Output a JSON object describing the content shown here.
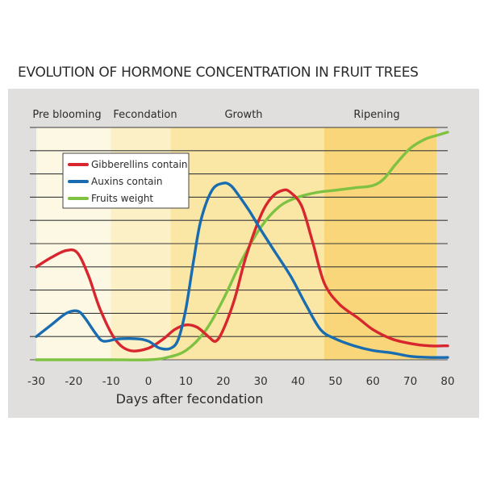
{
  "chart_data": {
    "type": "line",
    "title": "EVOLUTION OF HORMONE CONCENTRATION IN FRUIT TREES",
    "xlabel": "Days after fecondation",
    "ylabel": "",
    "xlim": [
      -30,
      80
    ],
    "ylim": [
      0,
      10
    ],
    "x_ticks": [
      -30,
      -20,
      -10,
      0,
      10,
      20,
      30,
      40,
      50,
      60,
      70,
      80
    ],
    "grid": true,
    "legend_position": "top-left",
    "phases": [
      {
        "label": "Pre blooming",
        "start": -30,
        "end": -10,
        "color": "#fdf8e3"
      },
      {
        "label": "Fecondation",
        "start": -10,
        "end": 6,
        "color": "#fbf0c6"
      },
      {
        "label": "Growth",
        "start": 6,
        "end": 47,
        "color": "#fae7a6"
      },
      {
        "label": "Ripening",
        "start": 47,
        "end": 77,
        "color": "#f8d679"
      }
    ],
    "series": [
      {
        "name": "Gibberellins contain",
        "color": "#d7262d",
        "x": [
          -30,
          -26,
          -22,
          -19,
          -16,
          -13,
          -9,
          -5,
          0,
          4,
          7,
          10,
          13,
          16,
          18,
          20,
          23,
          26,
          30,
          33,
          36,
          38,
          41,
          44,
          47,
          51,
          56,
          60,
          65,
          70,
          75,
          79,
          80
        ],
        "y": [
          4.0,
          4.4,
          4.7,
          4.6,
          3.6,
          2.2,
          0.9,
          0.4,
          0.5,
          0.9,
          1.3,
          1.5,
          1.4,
          1.0,
          0.8,
          1.3,
          2.6,
          4.4,
          6.2,
          7.0,
          7.3,
          7.2,
          6.6,
          5.0,
          3.3,
          2.4,
          1.8,
          1.3,
          0.9,
          0.7,
          0.6,
          0.6,
          0.6
        ]
      },
      {
        "name": "Auxins contain",
        "color": "#1a6cb0",
        "x": [
          -30,
          -26,
          -22,
          -19,
          -17,
          -14,
          -12,
          -8,
          -3,
          0,
          3,
          6,
          8,
          10,
          12,
          14,
          17,
          20,
          22,
          24,
          27,
          30,
          34,
          38,
          42,
          46,
          50,
          55,
          60,
          65,
          70,
          75,
          80
        ],
        "y": [
          1.0,
          1.5,
          2.0,
          2.1,
          1.8,
          1.1,
          0.8,
          0.9,
          0.9,
          0.8,
          0.5,
          0.5,
          0.9,
          2.2,
          4.2,
          6.0,
          7.3,
          7.6,
          7.5,
          7.1,
          6.4,
          5.6,
          4.6,
          3.6,
          2.4,
          1.3,
          0.9,
          0.6,
          0.4,
          0.3,
          0.15,
          0.1,
          0.1
        ]
      },
      {
        "name": "Fruits weight",
        "color": "#7fc241",
        "x": [
          -30,
          -20,
          -10,
          0,
          5,
          10,
          15,
          20,
          25,
          30,
          35,
          40,
          45,
          50,
          55,
          60,
          63,
          66,
          70,
          74,
          78,
          80
        ],
        "y": [
          0.0,
          0.0,
          0.0,
          0.0,
          0.1,
          0.4,
          1.2,
          2.6,
          4.3,
          5.7,
          6.6,
          7.0,
          7.2,
          7.3,
          7.4,
          7.5,
          7.8,
          8.4,
          9.1,
          9.5,
          9.7,
          9.8
        ]
      }
    ]
  }
}
